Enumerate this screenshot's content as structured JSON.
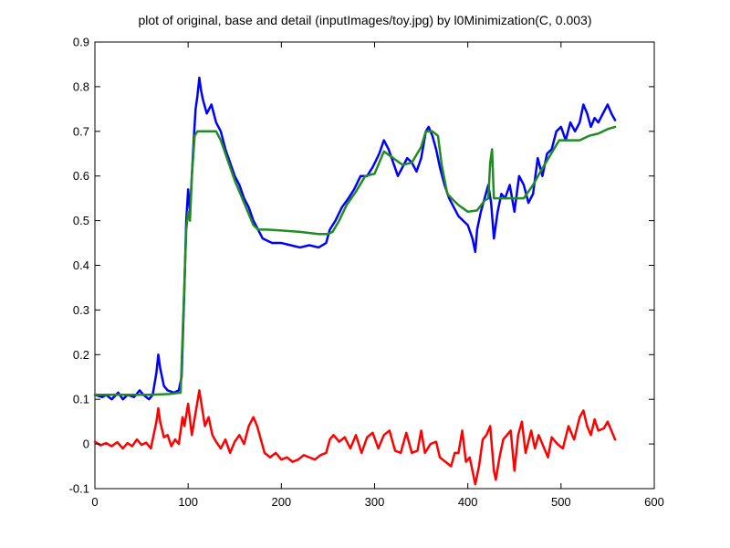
{
  "chart_data": {
    "type": "line",
    "title": "plot of original, base and detail (inputImages/toy.jpg) by l0Minimization(C, 0.003)",
    "xlabel": "",
    "ylabel": "",
    "xlim": [
      0,
      600
    ],
    "ylim": [
      -0.1,
      0.9
    ],
    "xticks": [
      0,
      100,
      200,
      300,
      400,
      500,
      600
    ],
    "yticks": [
      -0.1,
      0,
      0.1,
      0.2,
      0.3,
      0.4,
      0.5,
      0.6,
      0.7,
      0.8,
      0.9
    ],
    "ytick_labels": [
      "-0.1",
      "0",
      "0.1",
      "0.2",
      "0.3",
      "0.4",
      "0.5",
      "0.6",
      "0.7",
      "0.8",
      "0.9"
    ],
    "grid": false,
    "legend": "none",
    "series": [
      {
        "color": "#0000ff",
        "points": [
          [
            0,
            0.11
          ],
          [
            8,
            0.105
          ],
          [
            12,
            0.11
          ],
          [
            18,
            0.1
          ],
          [
            25,
            0.115
          ],
          [
            30,
            0.1
          ],
          [
            35,
            0.11
          ],
          [
            42,
            0.105
          ],
          [
            48,
            0.12
          ],
          [
            52,
            0.11
          ],
          [
            58,
            0.1
          ],
          [
            62,
            0.11
          ],
          [
            66,
            0.16
          ],
          [
            68,
            0.2
          ],
          [
            70,
            0.17
          ],
          [
            74,
            0.13
          ],
          [
            78,
            0.12
          ],
          [
            85,
            0.115
          ],
          [
            90,
            0.12
          ],
          [
            93,
            0.15
          ],
          [
            96,
            0.35
          ],
          [
            98,
            0.5
          ],
          [
            100,
            0.57
          ],
          [
            102,
            0.52
          ],
          [
            104,
            0.6
          ],
          [
            106,
            0.68
          ],
          [
            108,
            0.75
          ],
          [
            110,
            0.78
          ],
          [
            112,
            0.82
          ],
          [
            114,
            0.79
          ],
          [
            116,
            0.77
          ],
          [
            120,
            0.74
          ],
          [
            125,
            0.76
          ],
          [
            130,
            0.72
          ],
          [
            135,
            0.7
          ],
          [
            140,
            0.66
          ],
          [
            145,
            0.63
          ],
          [
            150,
            0.6
          ],
          [
            155,
            0.58
          ],
          [
            160,
            0.55
          ],
          [
            165,
            0.53
          ],
          [
            170,
            0.5
          ],
          [
            175,
            0.48
          ],
          [
            180,
            0.46
          ],
          [
            190,
            0.45
          ],
          [
            200,
            0.45
          ],
          [
            210,
            0.445
          ],
          [
            220,
            0.44
          ],
          [
            230,
            0.445
          ],
          [
            240,
            0.44
          ],
          [
            248,
            0.45
          ],
          [
            252,
            0.48
          ],
          [
            258,
            0.5
          ],
          [
            265,
            0.53
          ],
          [
            272,
            0.55
          ],
          [
            278,
            0.57
          ],
          [
            285,
            0.6
          ],
          [
            292,
            0.6
          ],
          [
            298,
            0.62
          ],
          [
            305,
            0.65
          ],
          [
            310,
            0.68
          ],
          [
            315,
            0.66
          ],
          [
            320,
            0.63
          ],
          [
            325,
            0.6
          ],
          [
            330,
            0.62
          ],
          [
            335,
            0.64
          ],
          [
            340,
            0.63
          ],
          [
            345,
            0.61
          ],
          [
            350,
            0.64
          ],
          [
            355,
            0.7
          ],
          [
            358,
            0.71
          ],
          [
            362,
            0.69
          ],
          [
            366,
            0.66
          ],
          [
            370,
            0.62
          ],
          [
            375,
            0.58
          ],
          [
            380,
            0.55
          ],
          [
            385,
            0.53
          ],
          [
            390,
            0.51
          ],
          [
            395,
            0.5
          ],
          [
            400,
            0.49
          ],
          [
            405,
            0.46
          ],
          [
            408,
            0.43
          ],
          [
            410,
            0.48
          ],
          [
            414,
            0.52
          ],
          [
            418,
            0.55
          ],
          [
            422,
            0.58
          ],
          [
            425,
            0.54
          ],
          [
            428,
            0.46
          ],
          [
            432,
            0.52
          ],
          [
            436,
            0.56
          ],
          [
            440,
            0.55
          ],
          [
            445,
            0.58
          ],
          [
            450,
            0.52
          ],
          [
            455,
            0.6
          ],
          [
            460,
            0.58
          ],
          [
            465,
            0.54
          ],
          [
            470,
            0.56
          ],
          [
            475,
            0.64
          ],
          [
            480,
            0.6
          ],
          [
            485,
            0.65
          ],
          [
            490,
            0.66
          ],
          [
            495,
            0.7
          ],
          [
            500,
            0.71
          ],
          [
            505,
            0.68
          ],
          [
            510,
            0.72
          ],
          [
            515,
            0.7
          ],
          [
            520,
            0.72
          ],
          [
            524,
            0.76
          ],
          [
            528,
            0.74
          ],
          [
            532,
            0.71
          ],
          [
            536,
            0.73
          ],
          [
            540,
            0.72
          ],
          [
            545,
            0.74
          ],
          [
            550,
            0.76
          ],
          [
            554,
            0.74
          ],
          [
            558,
            0.725
          ]
        ]
      },
      {
        "color": "#228b22",
        "points": [
          [
            0,
            0.11
          ],
          [
            20,
            0.11
          ],
          [
            40,
            0.11
          ],
          [
            60,
            0.11
          ],
          [
            80,
            0.112
          ],
          [
            92,
            0.115
          ],
          [
            95,
            0.3
          ],
          [
            98,
            0.48
          ],
          [
            100,
            0.52
          ],
          [
            102,
            0.5
          ],
          [
            104,
            0.6
          ],
          [
            107,
            0.69
          ],
          [
            110,
            0.7
          ],
          [
            120,
            0.7
          ],
          [
            130,
            0.7
          ],
          [
            135,
            0.68
          ],
          [
            140,
            0.65
          ],
          [
            145,
            0.62
          ],
          [
            150,
            0.59
          ],
          [
            160,
            0.54
          ],
          [
            170,
            0.49
          ],
          [
            175,
            0.48
          ],
          [
            185,
            0.48
          ],
          [
            200,
            0.478
          ],
          [
            220,
            0.475
          ],
          [
            240,
            0.47
          ],
          [
            250,
            0.47
          ],
          [
            255,
            0.475
          ],
          [
            262,
            0.5
          ],
          [
            270,
            0.535
          ],
          [
            280,
            0.565
          ],
          [
            290,
            0.6
          ],
          [
            300,
            0.605
          ],
          [
            310,
            0.655
          ],
          [
            320,
            0.64
          ],
          [
            330,
            0.625
          ],
          [
            340,
            0.63
          ],
          [
            350,
            0.665
          ],
          [
            355,
            0.7
          ],
          [
            362,
            0.7
          ],
          [
            368,
            0.69
          ],
          [
            372,
            0.625
          ],
          [
            378,
            0.56
          ],
          [
            385,
            0.545
          ],
          [
            390,
            0.535
          ],
          [
            400,
            0.52
          ],
          [
            410,
            0.523
          ],
          [
            418,
            0.545
          ],
          [
            422,
            0.55
          ],
          [
            424,
            0.63
          ],
          [
            426,
            0.66
          ],
          [
            428,
            0.55
          ],
          [
            432,
            0.55
          ],
          [
            440,
            0.55
          ],
          [
            450,
            0.55
          ],
          [
            460,
            0.55
          ],
          [
            470,
            0.58
          ],
          [
            478,
            0.61
          ],
          [
            488,
            0.645
          ],
          [
            498,
            0.68
          ],
          [
            510,
            0.68
          ],
          [
            520,
            0.68
          ],
          [
            530,
            0.69
          ],
          [
            540,
            0.695
          ],
          [
            550,
            0.705
          ],
          [
            558,
            0.71
          ]
        ]
      },
      {
        "color": "#ff0000",
        "points": [
          [
            0,
            0.005
          ],
          [
            6,
            -0.003
          ],
          [
            12,
            0.002
          ],
          [
            18,
            -0.005
          ],
          [
            24,
            0.004
          ],
          [
            30,
            -0.01
          ],
          [
            35,
            0.002
          ],
          [
            40,
            -0.005
          ],
          [
            45,
            0.01
          ],
          [
            50,
            -0.002
          ],
          [
            55,
            0.003
          ],
          [
            60,
            -0.01
          ],
          [
            64,
            0.03
          ],
          [
            66,
            0.05
          ],
          [
            68,
            0.08
          ],
          [
            70,
            0.05
          ],
          [
            74,
            0.015
          ],
          [
            78,
            0.02
          ],
          [
            82,
            -0.005
          ],
          [
            86,
            0.01
          ],
          [
            90,
            0.0
          ],
          [
            94,
            0.06
          ],
          [
            96,
            0.04
          ],
          [
            100,
            0.09
          ],
          [
            104,
            0.02
          ],
          [
            108,
            0.07
          ],
          [
            112,
            0.12
          ],
          [
            115,
            0.08
          ],
          [
            118,
            0.04
          ],
          [
            122,
            0.06
          ],
          [
            126,
            0.02
          ],
          [
            130,
            0.005
          ],
          [
            135,
            -0.01
          ],
          [
            140,
            0.01
          ],
          [
            145,
            -0.02
          ],
          [
            150,
            0.005
          ],
          [
            155,
            0.02
          ],
          [
            160,
            0.0
          ],
          [
            165,
            0.04
          ],
          [
            170,
            0.06
          ],
          [
            174,
            0.04
          ],
          [
            178,
            0.01
          ],
          [
            182,
            -0.02
          ],
          [
            188,
            -0.03
          ],
          [
            194,
            -0.02
          ],
          [
            200,
            -0.035
          ],
          [
            206,
            -0.03
          ],
          [
            212,
            -0.04
          ],
          [
            218,
            -0.035
          ],
          [
            224,
            -0.025
          ],
          [
            230,
            -0.03
          ],
          [
            236,
            -0.035
          ],
          [
            242,
            -0.025
          ],
          [
            248,
            -0.02
          ],
          [
            252,
            0.01
          ],
          [
            256,
            0.02
          ],
          [
            262,
            0.005
          ],
          [
            268,
            0.015
          ],
          [
            274,
            -0.01
          ],
          [
            280,
            0.02
          ],
          [
            286,
            -0.02
          ],
          [
            292,
            0.015
          ],
          [
            298,
            0.025
          ],
          [
            304,
            -0.01
          ],
          [
            310,
            0.02
          ],
          [
            316,
            0.03
          ],
          [
            322,
            -0.015
          ],
          [
            328,
            -0.02
          ],
          [
            334,
            0.025
          ],
          [
            340,
            -0.02
          ],
          [
            346,
            -0.015
          ],
          [
            350,
            0.03
          ],
          [
            354,
            -0.02
          ],
          [
            360,
            0.0
          ],
          [
            366,
            0.005
          ],
          [
            370,
            -0.03
          ],
          [
            376,
            -0.04
          ],
          [
            382,
            -0.05
          ],
          [
            386,
            -0.02
          ],
          [
            390,
            -0.02
          ],
          [
            394,
            0.03
          ],
          [
            398,
            -0.04
          ],
          [
            402,
            -0.03
          ],
          [
            406,
            -0.07
          ],
          [
            408,
            -0.09
          ],
          [
            412,
            -0.05
          ],
          [
            416,
            0.01
          ],
          [
            420,
            0.02
          ],
          [
            424,
            0.04
          ],
          [
            428,
            -0.06
          ],
          [
            430,
            -0.08
          ],
          [
            434,
            -0.03
          ],
          [
            438,
            0.01
          ],
          [
            442,
            0.02
          ],
          [
            446,
            0.03
          ],
          [
            450,
            -0.06
          ],
          [
            454,
            0.02
          ],
          [
            458,
            0.05
          ],
          [
            462,
            -0.02
          ],
          [
            468,
            0.03
          ],
          [
            472,
            -0.01
          ],
          [
            476,
            0.02
          ],
          [
            480,
            0.0
          ],
          [
            486,
            -0.03
          ],
          [
            490,
            0.015
          ],
          [
            496,
            0.0
          ],
          [
            502,
            -0.01
          ],
          [
            508,
            0.04
          ],
          [
            514,
            0.01
          ],
          [
            520,
            0.06
          ],
          [
            524,
            0.075
          ],
          [
            528,
            0.04
          ],
          [
            532,
            0.02
          ],
          [
            536,
            0.055
          ],
          [
            540,
            0.03
          ],
          [
            546,
            0.035
          ],
          [
            550,
            0.05
          ],
          [
            554,
            0.03
          ],
          [
            558,
            0.01
          ]
        ]
      }
    ]
  }
}
